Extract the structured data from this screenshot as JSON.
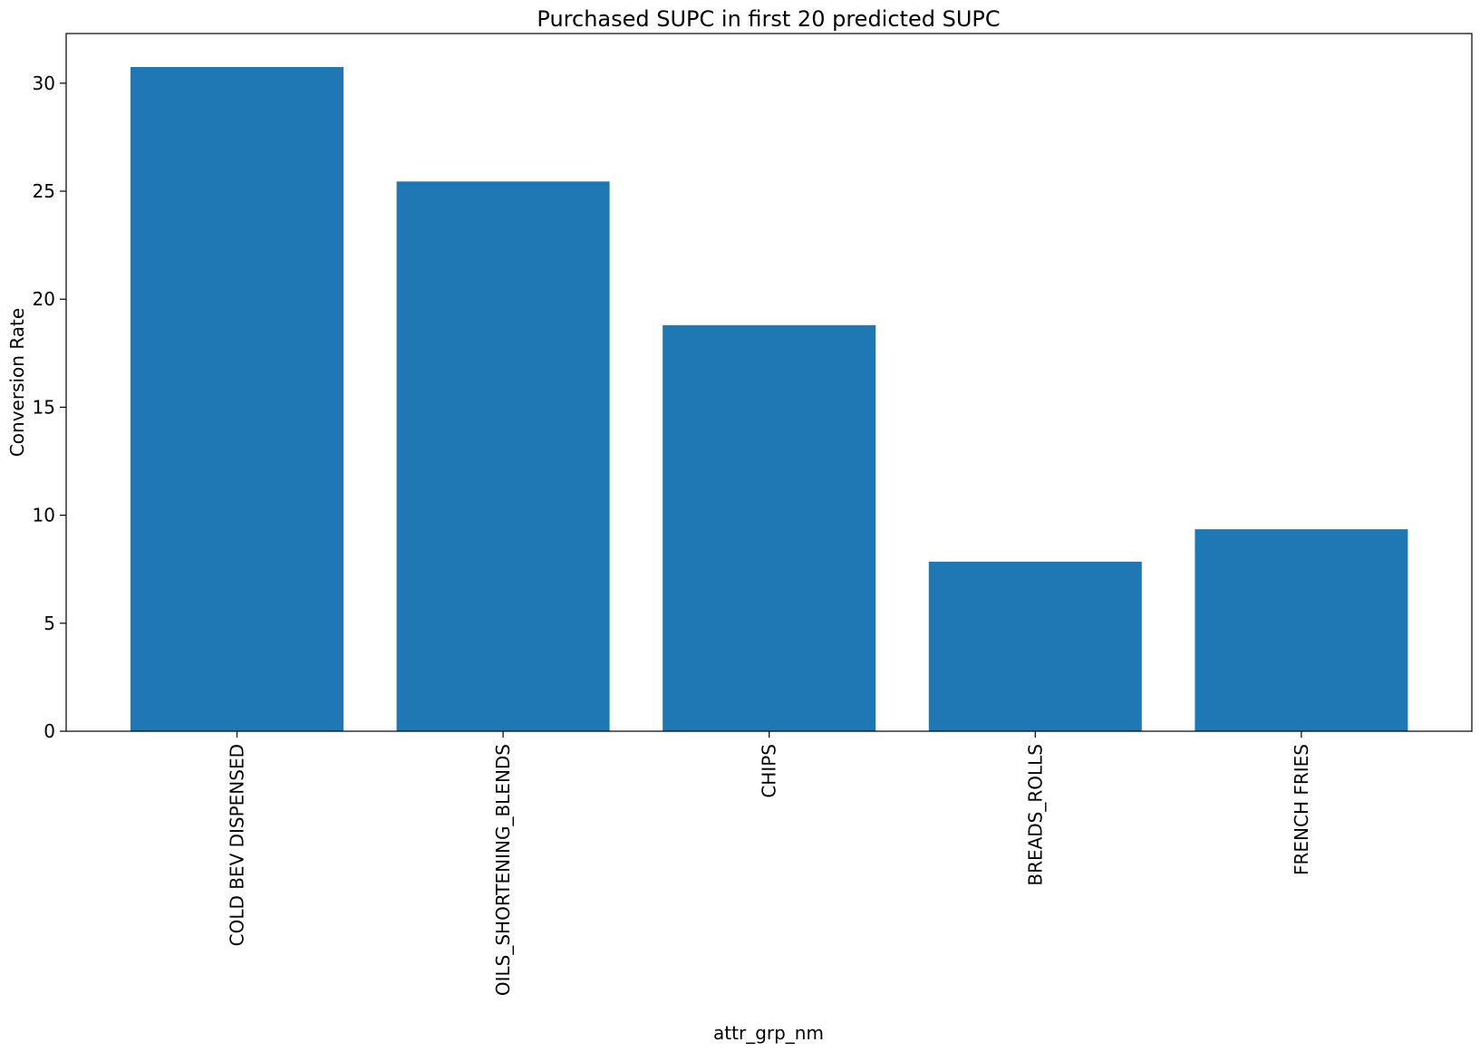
{
  "chart_data": {
    "type": "bar",
    "title": "Purchased SUPC in first 20 predicted SUPC",
    "xlabel": "attr_grp_nm",
    "ylabel": "Conversion Rate",
    "categories": [
      "COLD BEV DISPENSED",
      "OILS_SHORTENING_BLENDS",
      "CHIPS",
      "BREADS_ROLLS",
      "FRENCH FRIES"
    ],
    "values": [
      30.75,
      25.45,
      18.8,
      7.85,
      9.35
    ],
    "ylim": [
      0,
      32.3
    ],
    "yticks": [
      0,
      5,
      10,
      15,
      20,
      25,
      30
    ],
    "bar_color": "#1f77b4",
    "grid": false,
    "legend": "none"
  }
}
